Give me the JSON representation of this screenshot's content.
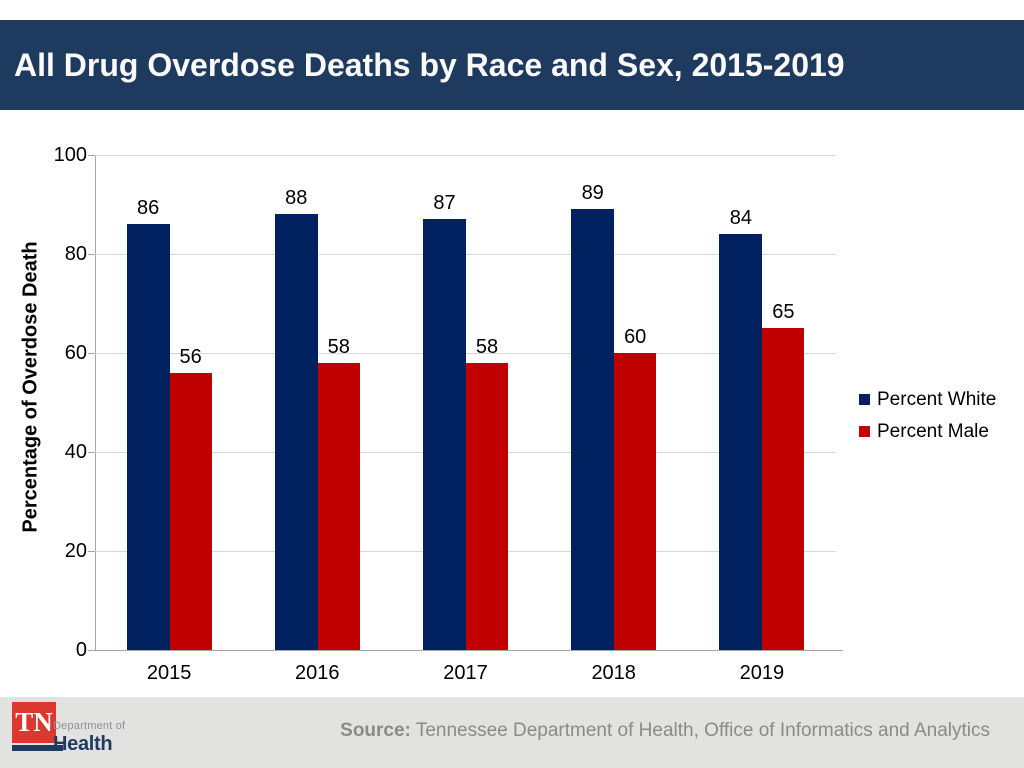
{
  "slide": {
    "title": "All Drug Overdose Deaths by Race and Sex, 2015-2019"
  },
  "chart_data": {
    "type": "bar",
    "title": "All Drug Overdose Deaths by Race and Sex, 2015-2019",
    "categories": [
      "2015",
      "2016",
      "2017",
      "2018",
      "2019"
    ],
    "series": [
      {
        "name": "Percent White",
        "color": "#002060",
        "values": [
          86,
          88,
          87,
          89,
          84
        ]
      },
      {
        "name": "Percent Male",
        "color": "#C00000",
        "values": [
          56,
          58,
          58,
          60,
          65
        ]
      }
    ],
    "xlabel": "",
    "ylabel": "Percentage of Overdose Death",
    "ylim": [
      0,
      100
    ],
    "yticks": [
      0,
      20,
      40,
      60,
      80,
      100
    ],
    "grid": true,
    "data_labels": true,
    "legend_position": "right"
  },
  "footer": {
    "logo": {
      "abbr": "TN",
      "dept_line": "Department of",
      "name": "Health"
    },
    "source_label": "Source:",
    "source_text": "Tennessee Department of Health, Office of Informatics and Analytics"
  },
  "colors": {
    "title_bar": "#1F3A5F",
    "bar_white_series": "#002060",
    "bar_male_series": "#C00000",
    "gridline": "#D9D9D9",
    "axis": "#A6A6A6",
    "footer_bg": "#E2E2E1",
    "footer_text": "#8A8A8A",
    "logo_red": "#DC3832",
    "logo_navy": "#1F3A5F"
  }
}
